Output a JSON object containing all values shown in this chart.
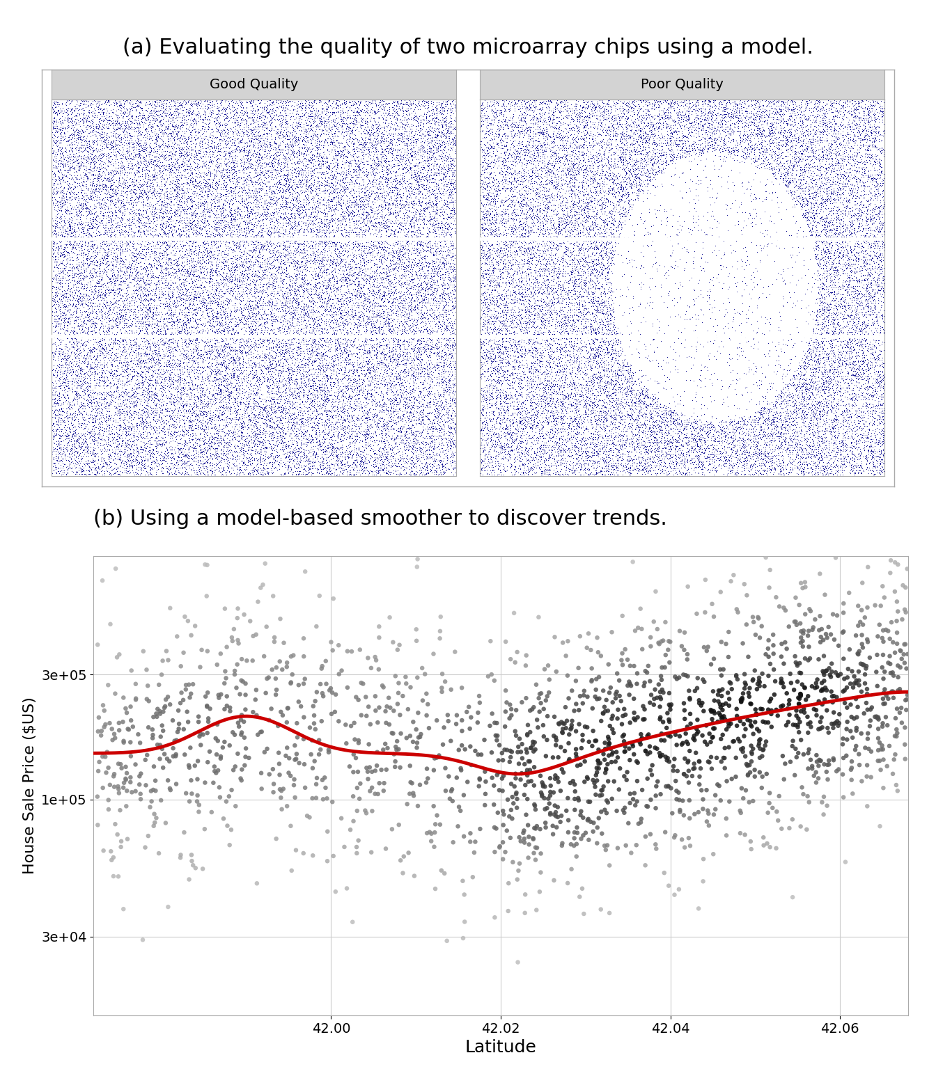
{
  "title_a": "(a) Evaluating the quality of two microarray chips using a model.",
  "title_b": "(b) Using a model-based smoother to discover trends.",
  "panel_a_labels": [
    "Good Quality",
    "Poor Quality"
  ],
  "dot_color": "#00008B",
  "background_color": "#ffffff",
  "panel_header_bg": "#d3d3d3",
  "smoother_color": "#cc0000",
  "xlabel_b": "Latitude",
  "ylabel_b": "House Sale Price ($US)",
  "y_ticks_b": [
    30000,
    100000,
    300000
  ],
  "y_tick_labels_b": [
    "3e+04",
    "1e+05",
    "3e+05"
  ],
  "title_fontsize_a": 22,
  "title_fontsize_b": 22,
  "label_fontsize": 16,
  "tick_fontsize": 14,
  "header_fontsize": 14,
  "seed": 42,
  "n_microarray_dots": 40000,
  "n_scatter": 1500
}
